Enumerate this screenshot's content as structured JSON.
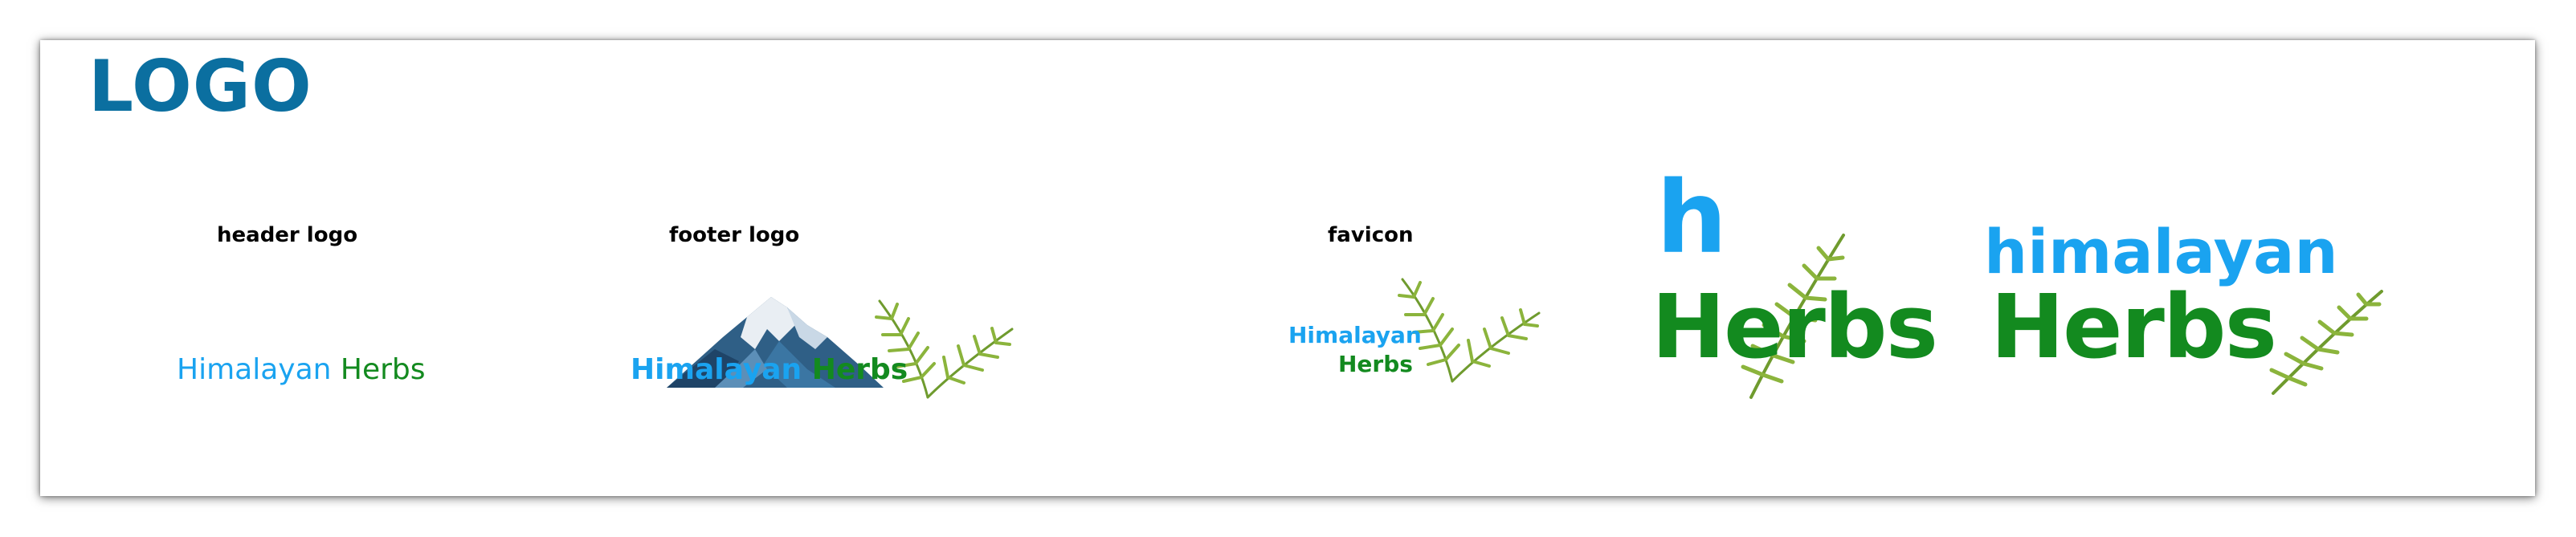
{
  "page": {
    "title": "LOGO"
  },
  "sections": {
    "header_label": "header logo",
    "footer_label": "footer logo",
    "favicon_label": "favicon"
  },
  "brand": {
    "word1": "Himalayan",
    "word2": "Herbs",
    "word1_lower": "himalayan",
    "initial": "h"
  },
  "colors": {
    "title": "#0b6fa0",
    "blue": "#1aa3f0",
    "green": "#138a1f",
    "leaf": "#6f9b2e"
  },
  "icons": [
    "mountain-icon",
    "palm-leaf-icon"
  ]
}
